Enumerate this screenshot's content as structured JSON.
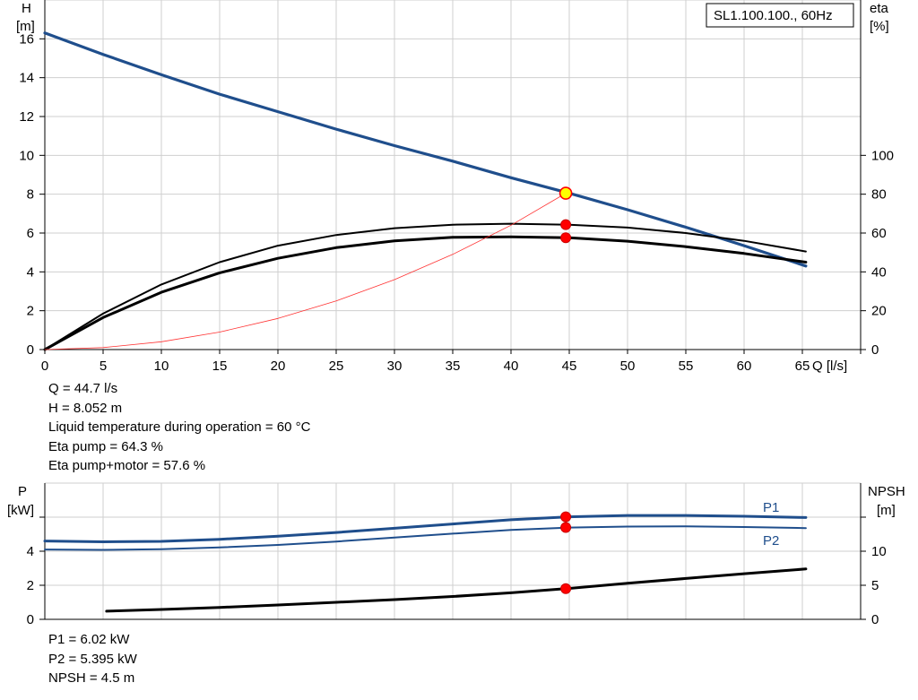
{
  "chart_data": [
    {
      "type": "line",
      "title": "SL1.100.100., 60Hz",
      "xlabel": "Q [l/s]",
      "ylabel_left": [
        "H",
        "[m]"
      ],
      "ylabel_right": [
        "eta",
        "[%]"
      ],
      "xlim": [
        0,
        70
      ],
      "ylim_left": [
        0,
        18
      ],
      "ylim_right": [
        0,
        180
      ],
      "x_ticks": [
        0,
        5,
        10,
        15,
        20,
        25,
        30,
        35,
        40,
        45,
        50,
        55,
        60,
        65
      ],
      "y_ticks_left": [
        0,
        2,
        4,
        6,
        8,
        10,
        12,
        14,
        16
      ],
      "y_ticks_right": [
        0,
        20,
        40,
        60,
        80,
        100
      ],
      "grid": true,
      "series": [
        {
          "name": "",
          "axis": "left",
          "color": "#1f4e8c",
          "width": 3.2,
          "x": [
            0,
            5,
            10,
            15,
            20,
            25,
            30,
            35,
            40,
            45,
            50,
            55,
            60,
            65.3
          ],
          "y": [
            16.3,
            15.2,
            14.15,
            13.15,
            12.25,
            11.35,
            10.5,
            9.7,
            8.85,
            8.05,
            7.2,
            6.3,
            5.35,
            4.3
          ]
        },
        {
          "name": "",
          "axis": "right",
          "color": "#000000",
          "width": 2.0,
          "x": [
            0,
            5,
            10,
            15,
            20,
            25,
            30,
            35,
            40,
            45,
            50,
            55,
            60,
            65.3
          ],
          "y": [
            0,
            18.5,
            33.5,
            45,
            53.5,
            59,
            62.5,
            64.3,
            64.8,
            64.3,
            62.8,
            60,
            56,
            50.5
          ]
        },
        {
          "name": "",
          "axis": "right",
          "color": "#000000",
          "width": 3.0,
          "x": [
            0,
            5,
            10,
            15,
            20,
            25,
            30,
            35,
            40,
            45,
            50,
            55,
            60,
            65.3
          ],
          "y": [
            0,
            16.5,
            29.5,
            39.5,
            47,
            52.5,
            56,
            57.8,
            58,
            57.6,
            55.8,
            53,
            49.5,
            45
          ]
        },
        {
          "name": "",
          "axis": "left",
          "color": "#ff3333",
          "width": 0.8,
          "x": [
            0,
            5,
            10,
            15,
            20,
            25,
            30,
            35,
            40,
            44.7
          ],
          "y": [
            0,
            0.1,
            0.4,
            0.9,
            1.6,
            2.5,
            3.6,
            4.9,
            6.4,
            8.05
          ]
        }
      ],
      "operating_point": {
        "x": 44.7,
        "y": 8.052
      },
      "markers_right": [
        {
          "x": 44.7,
          "y": 64.3
        },
        {
          "x": 44.7,
          "y": 57.6
        }
      ]
    },
    {
      "type": "line",
      "xlabel": "",
      "ylabel_left": [
        "P",
        "[kW]"
      ],
      "ylabel_right": [
        "NPSH",
        "[m]"
      ],
      "xlim": [
        0,
        70
      ],
      "ylim_left": [
        0,
        8
      ],
      "ylim_right": [
        0,
        20
      ],
      "y_ticks_left": [
        0,
        2,
        4
      ],
      "y_ticks_right": [
        0,
        5,
        10
      ],
      "grid": true,
      "series": [
        {
          "name": "P1",
          "axis": "left",
          "color": "#1f4e8c",
          "width": 3.0,
          "x": [
            0,
            5,
            10,
            15,
            20,
            25,
            30,
            35,
            40,
            45,
            50,
            55,
            60,
            65.3
          ],
          "y": [
            4.6,
            4.55,
            4.58,
            4.7,
            4.88,
            5.1,
            5.35,
            5.6,
            5.85,
            6.02,
            6.1,
            6.1,
            6.05,
            5.98
          ]
        },
        {
          "name": "P2",
          "axis": "left",
          "color": "#1f4e8c",
          "width": 2.0,
          "x": [
            0,
            5,
            10,
            15,
            20,
            25,
            30,
            35,
            40,
            45,
            50,
            55,
            60,
            65.3
          ],
          "y": [
            4.1,
            4.08,
            4.12,
            4.22,
            4.37,
            4.57,
            4.8,
            5.03,
            5.25,
            5.39,
            5.45,
            5.46,
            5.42,
            5.36
          ]
        },
        {
          "name": "",
          "axis": "right",
          "color": "#000000",
          "width": 3.0,
          "x": [
            5.3,
            10,
            15,
            20,
            25,
            30,
            35,
            40,
            44.7,
            50,
            55,
            60,
            65.3
          ],
          "y": [
            1.2,
            1.45,
            1.75,
            2.1,
            2.5,
            2.9,
            3.35,
            3.9,
            4.5,
            5.3,
            6.0,
            6.7,
            7.4
          ]
        }
      ],
      "markers": [
        {
          "x": 44.7,
          "y": 6.02,
          "axis": "left"
        },
        {
          "x": 44.7,
          "y": 5.395,
          "axis": "left"
        },
        {
          "x": 44.7,
          "y": 4.5,
          "axis": "right"
        }
      ]
    }
  ],
  "info_top": [
    "Q = 44.7 l/s",
    "H = 8.052 m",
    "Liquid temperature during operation = 60 °C",
    "Eta pump = 64.3 %",
    "Eta pump+motor = 57.6 %"
  ],
  "info_bottom": [
    "P1 = 6.02 kW",
    "P2 = 5.395 kW",
    "NPSH = 4.5 m"
  ]
}
